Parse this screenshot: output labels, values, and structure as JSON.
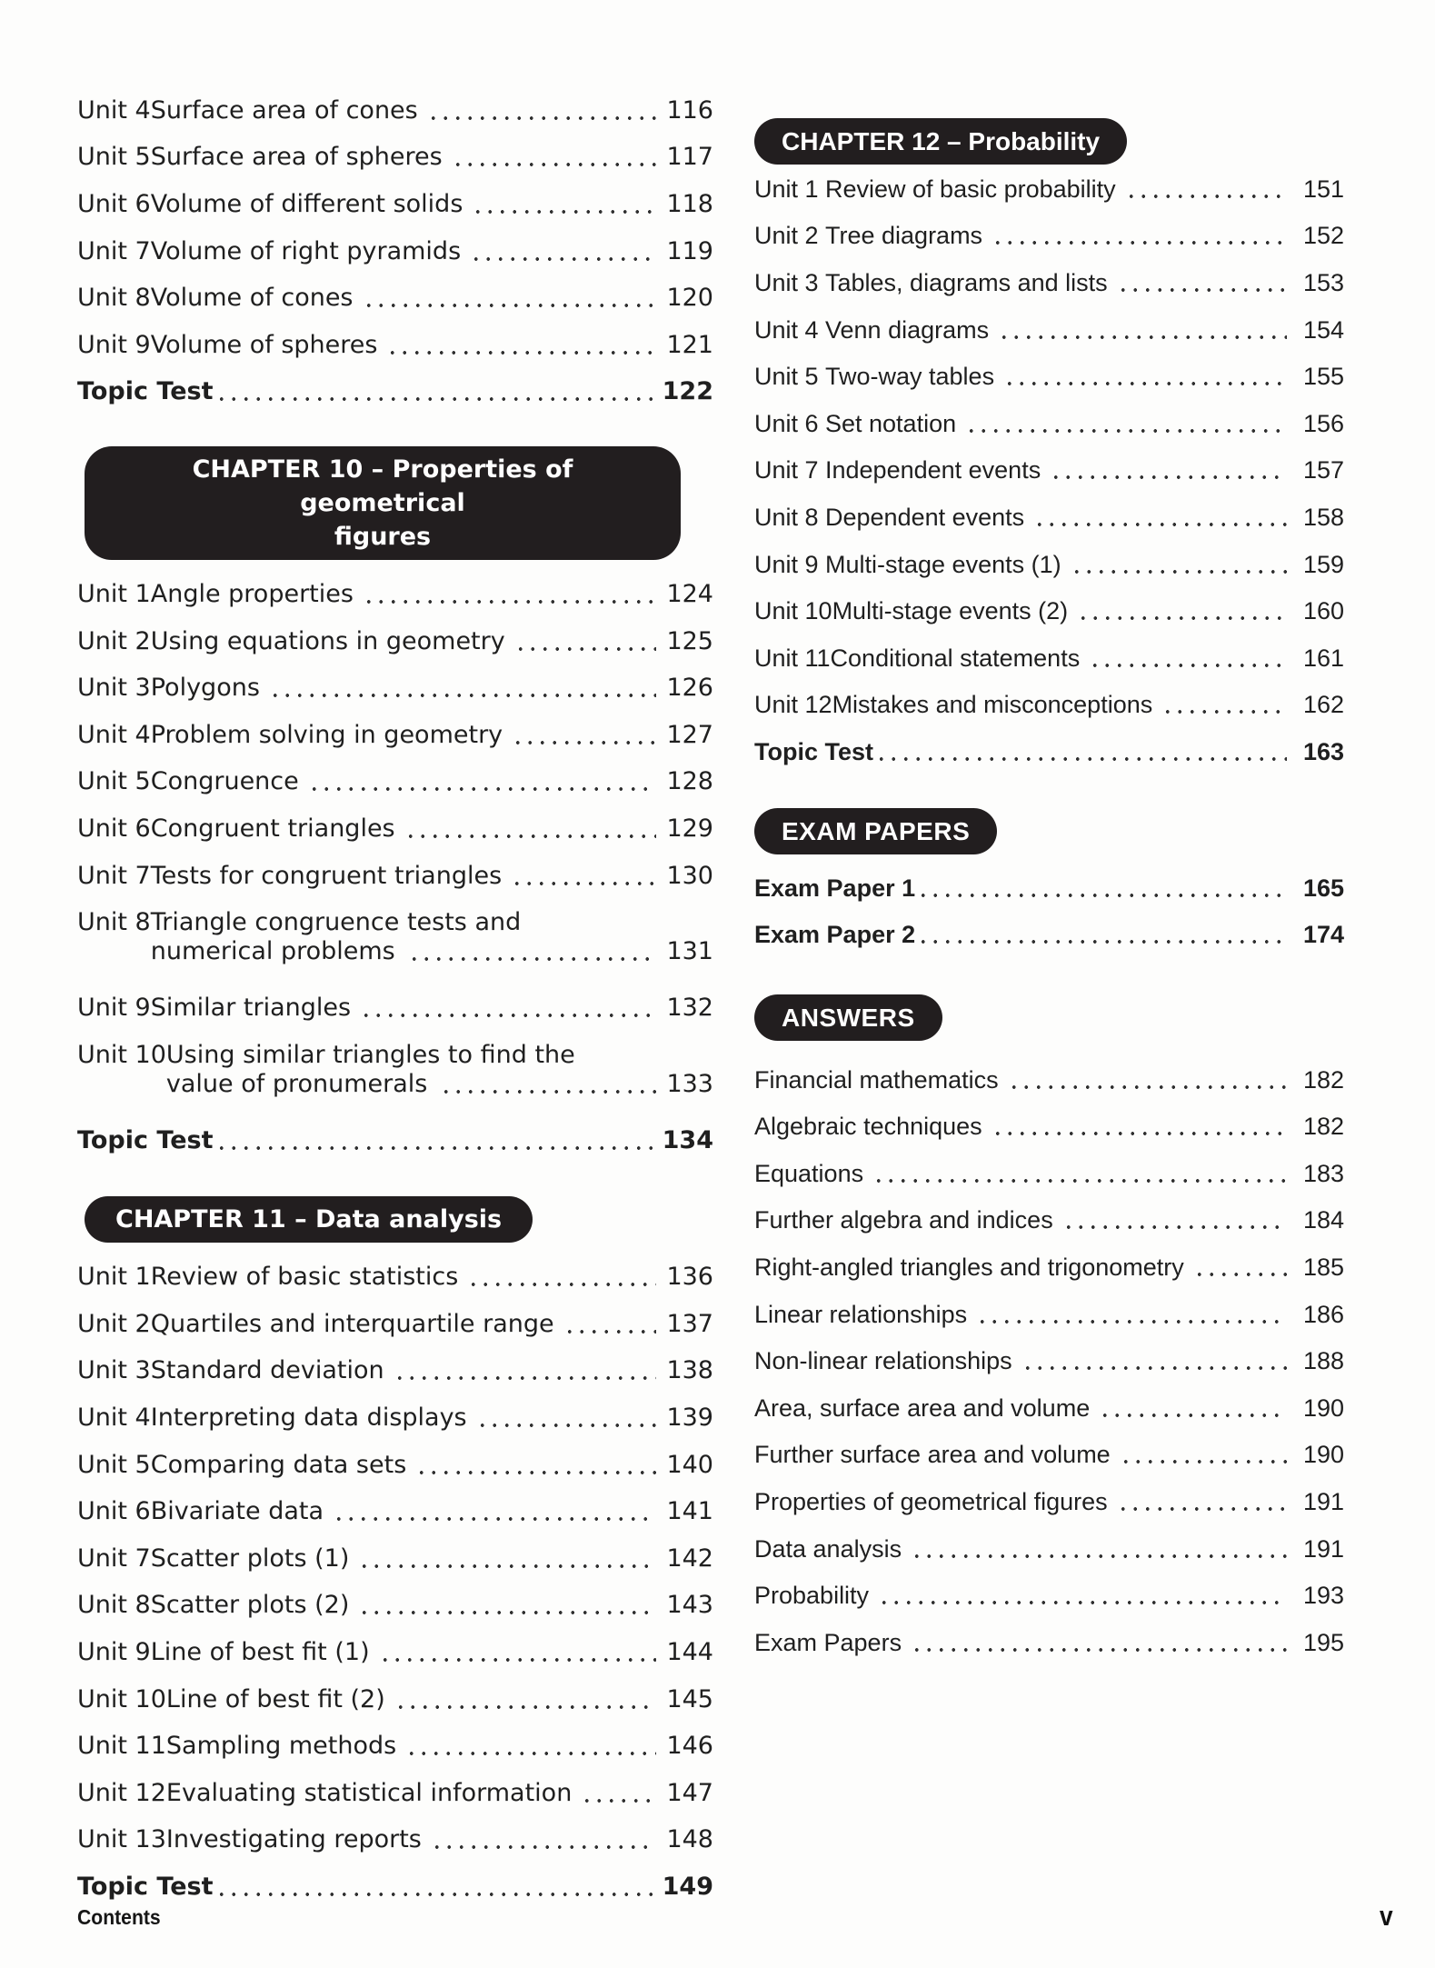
{
  "colors": {
    "ink": "#1f1f1f",
    "banner_bg": "#221e1f",
    "dot": "#2f2f2f"
  },
  "footer": {
    "left": "Contents",
    "right": "v"
  },
  "banners": {
    "ch10_line1": "CHAPTER 10 – Properties of geometrical",
    "ch10_line2": "figures",
    "ch11": "CHAPTER 11 – Data analysis",
    "ch12": "CHAPTER 12 – Probability",
    "exam": "EXAM PAPERS",
    "answers": "ANSWERS"
  },
  "toc": {
    "intro_rows": [
      {
        "label": "Unit 4",
        "title": "Surface area of cones",
        "page": "116"
      },
      {
        "label": "Unit 5",
        "title": "Surface area of spheres",
        "page": "117"
      },
      {
        "label": "Unit 6",
        "title": "Volume of different solids",
        "page": "118"
      },
      {
        "label": "Unit 7",
        "title": "Volume of right pyramids",
        "page": "119"
      },
      {
        "label": "Unit 8",
        "title": "Volume of cones",
        "page": "120"
      },
      {
        "label": "Unit 9",
        "title": "Volume of spheres",
        "page": "121"
      },
      {
        "title": "Topic Test",
        "page": "122",
        "bold": true
      }
    ],
    "ch10_rows": [
      {
        "label": "Unit 1",
        "title": "Angle properties",
        "page": "124"
      },
      {
        "label": "Unit 2",
        "title": "Using equations in geometry",
        "page": "125"
      },
      {
        "label": "Unit 3",
        "title": "Polygons",
        "page": "126"
      },
      {
        "label": "Unit 4",
        "title": "Problem solving in geometry",
        "page": "127"
      },
      {
        "label": "Unit 5",
        "title": "Congruence",
        "page": "128"
      },
      {
        "label": "Unit 6",
        "title": "Congruent triangles",
        "page": "129"
      },
      {
        "label": "Unit 7",
        "title": "Tests for congruent triangles",
        "page": "130"
      },
      {
        "label": "Unit 8",
        "lines": [
          "Triangle congruence tests and",
          "numerical problems"
        ],
        "page": "131"
      },
      {
        "label": "Unit 9",
        "title": "Similar triangles",
        "page": "132"
      },
      {
        "label": "Unit 10",
        "lines": [
          "Using similar triangles to find the",
          "value of pronumerals"
        ],
        "page": "133"
      },
      {
        "title": "Topic Test",
        "page": "134",
        "bold": true
      }
    ],
    "ch11_rows": [
      {
        "label": "Unit 1",
        "title": "Review of basic statistics",
        "page": "136"
      },
      {
        "label": "Unit 2",
        "title": "Quartiles and interquartile range",
        "page": "137"
      },
      {
        "label": "Unit 3",
        "title": "Standard deviation",
        "page": "138"
      },
      {
        "label": "Unit 4",
        "title": "Interpreting data displays",
        "page": "139"
      },
      {
        "label": "Unit 5",
        "title": "Comparing data sets",
        "page": "140"
      },
      {
        "label": "Unit 6",
        "title": "Bivariate data",
        "page": "141"
      },
      {
        "label": "Unit 7",
        "title": "Scatter plots (1)",
        "page": "142"
      },
      {
        "label": "Unit 8",
        "title": "Scatter plots (2)",
        "page": "143"
      },
      {
        "label": "Unit 9",
        "title": "Line of best fit (1)",
        "page": "144"
      },
      {
        "label": "Unit 10",
        "title": "Line of best fit (2)",
        "page": "145"
      },
      {
        "label": "Unit 11",
        "title": "Sampling methods",
        "page": "146"
      },
      {
        "label": "Unit 12",
        "title": "Evaluating statistical information",
        "page": "147"
      },
      {
        "label": "Unit 13",
        "title": "Investigating reports",
        "page": "148"
      },
      {
        "title": "Topic Test",
        "page": "149",
        "bold": true
      }
    ],
    "ch12_rows": [
      {
        "label": "Unit 1",
        "title": "Review of basic probability",
        "page": "151"
      },
      {
        "label": "Unit 2",
        "title": "Tree diagrams",
        "page": "152"
      },
      {
        "label": "Unit 3",
        "title": "Tables, diagrams and lists",
        "page": "153"
      },
      {
        "label": "Unit 4",
        "title": "Venn diagrams",
        "page": "154"
      },
      {
        "label": "Unit 5",
        "title": "Two-way tables",
        "page": "155"
      },
      {
        "label": "Unit 6",
        "title": "Set notation",
        "page": "156"
      },
      {
        "label": "Unit 7",
        "title": "Independent events",
        "page": "157"
      },
      {
        "label": "Unit 8",
        "title": "Dependent events",
        "page": "158"
      },
      {
        "label": "Unit 9",
        "title": "Multi-stage events (1)",
        "page": "159"
      },
      {
        "label": "Unit 10",
        "title": "Multi-stage events (2)",
        "page": "160"
      },
      {
        "label": "Unit 11",
        "title": "Conditional statements",
        "page": "161"
      },
      {
        "label": "Unit 12",
        "title": "Mistakes and misconceptions",
        "page": "162"
      },
      {
        "title": "Topic Test",
        "page": "163",
        "bold": true
      }
    ],
    "exam_rows": [
      {
        "title": "Exam Paper 1",
        "page": "165",
        "bold": true
      },
      {
        "title": "Exam Paper 2",
        "page": "174",
        "bold": true
      }
    ],
    "answers_rows": [
      {
        "title": "Financial mathematics",
        "page": "182"
      },
      {
        "title": "Algebraic techniques",
        "page": "182"
      },
      {
        "title": "Equations",
        "page": "183"
      },
      {
        "title": "Further algebra and indices",
        "page": "184"
      },
      {
        "title": "Right-angled triangles and trigonometry",
        "page": "185"
      },
      {
        "title": "Linear relationships",
        "page": "186"
      },
      {
        "title": "Non-linear relationships",
        "page": "188"
      },
      {
        "title": "Area, surface area and volume",
        "page": "190"
      },
      {
        "title": "Further surface area and volume",
        "page": "190"
      },
      {
        "title": "Properties of geometrical figures",
        "page": "191"
      },
      {
        "title": "Data analysis",
        "page": "191"
      },
      {
        "title": "Probability",
        "page": "193"
      },
      {
        "title": "Exam Papers",
        "page": "195"
      }
    ]
  }
}
